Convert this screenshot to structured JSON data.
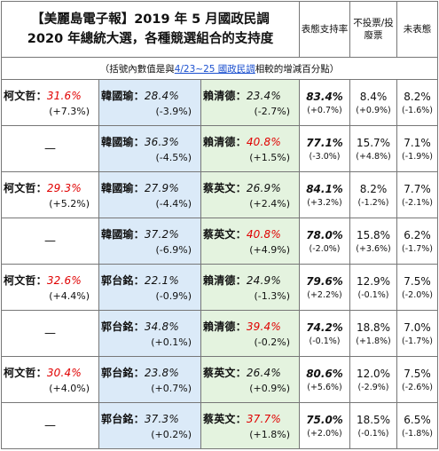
{
  "title": {
    "line1": "【美麗島電子報】2019 年 5 月國政民調",
    "line2": "2020 年總統大選，各種競選組合的支持度"
  },
  "columns": {
    "support": "表態支持率",
    "novote": "不投票/投廢票",
    "undecided": "未表態"
  },
  "note": {
    "prefix": "（括號內數值是與",
    "link": "4/23~25 國政民調",
    "suffix": "相較的增減百分點）"
  },
  "rows": [
    {
      "ko": {
        "name": "柯文哲：",
        "pct": "31.6%",
        "chg": "(+7.3%)"
      },
      "c2": {
        "name": "韓國瑜：",
        "pct": "28.4%",
        "chg": "(-3.9%)",
        "red": false
      },
      "c3": {
        "name": "賴清德：",
        "pct": "23.4%",
        "chg": "(-2.7%)",
        "red": false
      },
      "support": "83.4%",
      "support_chg": "(+0.7%)",
      "novote": "8.4%",
      "novote_chg": "(+0.9%)",
      "undecided": "8.2%",
      "undecided_chg": "(-1.6%)"
    },
    {
      "ko": null,
      "c2": {
        "name": "韓國瑜：",
        "pct": "36.3%",
        "chg": "(-4.5%)",
        "red": false
      },
      "c3": {
        "name": "賴清德：",
        "pct": "40.8%",
        "chg": "(+1.5%)",
        "red": true
      },
      "support": "77.1%",
      "support_chg": "(-3.0%)",
      "novote": "15.7%",
      "novote_chg": "(+4.8%)",
      "undecided": "7.1%",
      "undecided_chg": "(-1.9%)"
    },
    {
      "ko": {
        "name": "柯文哲：",
        "pct": "29.3%",
        "chg": "(+5.2%)"
      },
      "c2": {
        "name": "韓國瑜：",
        "pct": "27.9%",
        "chg": "(-4.4%)",
        "red": false
      },
      "c3": {
        "name": "蔡英文：",
        "pct": "26.9%",
        "chg": "(+2.4%)",
        "red": false
      },
      "support": "84.1%",
      "support_chg": "(+3.2%)",
      "novote": "8.2%",
      "novote_chg": "(-1.2%)",
      "undecided": "7.7%",
      "undecided_chg": "(-2.1%)"
    },
    {
      "ko": null,
      "c2": {
        "name": "韓國瑜：",
        "pct": "37.2%",
        "chg": "(-6.9%)",
        "red": false
      },
      "c3": {
        "name": "蔡英文：",
        "pct": "40.8%",
        "chg": "(+4.9%)",
        "red": true
      },
      "support": "78.0%",
      "support_chg": "(-2.0%)",
      "novote": "15.8%",
      "novote_chg": "(+3.6%)",
      "undecided": "6.2%",
      "undecided_chg": "(-1.7%)"
    },
    {
      "ko": {
        "name": "柯文哲：",
        "pct": "32.6%",
        "chg": "(+4.4%)"
      },
      "c2": {
        "name": "郭台銘：",
        "pct": "22.1%",
        "chg": "(-0.9%)",
        "red": false
      },
      "c3": {
        "name": "賴清德：",
        "pct": "24.9%",
        "chg": "(-1.3%)",
        "red": false
      },
      "support": "79.6%",
      "support_chg": "(+2.2%)",
      "novote": "12.9%",
      "novote_chg": "(-0.1%)",
      "undecided": "7.5%",
      "undecided_chg": "(-2.0%)"
    },
    {
      "ko": null,
      "c2": {
        "name": "郭台銘：",
        "pct": "34.8%",
        "chg": "(+0.1%)",
        "red": false
      },
      "c3": {
        "name": "賴清德：",
        "pct": "39.4%",
        "chg": "(-0.2%)",
        "red": true
      },
      "support": "74.2%",
      "support_chg": "(-0.1%)",
      "novote": "18.8%",
      "novote_chg": "(+1.8%)",
      "undecided": "7.0%",
      "undecided_chg": "(-1.7%)"
    },
    {
      "ko": {
        "name": "柯文哲：",
        "pct": "30.4%",
        "chg": "(+4.0%)"
      },
      "c2": {
        "name": "郭台銘：",
        "pct": "23.8%",
        "chg": "(+0.7%)",
        "red": false
      },
      "c3": {
        "name": "蔡英文：",
        "pct": "26.4%",
        "chg": "(+0.9%)",
        "red": false
      },
      "support": "80.6%",
      "support_chg": "(+5.6%)",
      "novote": "12.0%",
      "novote_chg": "(-2.9%)",
      "undecided": "7.5%",
      "undecided_chg": "(-2.6%)"
    },
    {
      "ko": null,
      "c2": {
        "name": "郭台銘：",
        "pct": "37.3%",
        "chg": "(+0.2%)",
        "red": false
      },
      "c3": {
        "name": "蔡英文：",
        "pct": "37.7%",
        "chg": "(+1.8%)",
        "red": true
      },
      "support": "75.0%",
      "support_chg": "(+2.0%)",
      "novote": "18.5%",
      "novote_chg": "(-0.1%)",
      "undecided": "6.5%",
      "undecided_chg": "(-1.8%)"
    }
  ],
  "dash": "—",
  "colors": {
    "ko_red": "#e00000",
    "blue_cell": "#dbeaf8",
    "green_cell": "#e4f3df",
    "link": "#1a4fcf"
  }
}
